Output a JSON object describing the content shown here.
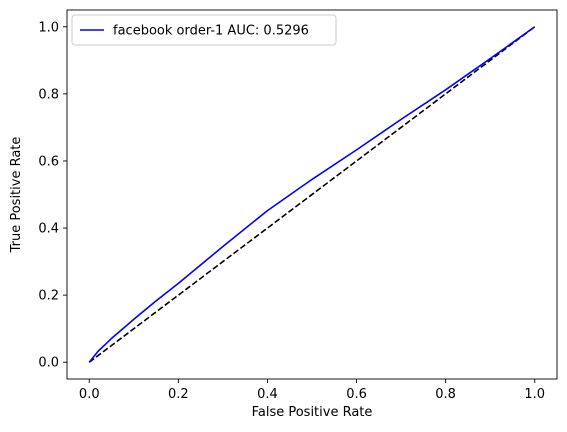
{
  "chart_data": {
    "type": "line",
    "xlabel": "False Positive Rate",
    "ylabel": "True Positive Rate",
    "xlim": [
      -0.05,
      1.05
    ],
    "ylim": [
      -0.05,
      1.05
    ],
    "xticks": [
      0.0,
      0.2,
      0.4,
      0.6,
      0.8,
      1.0
    ],
    "yticks": [
      0.0,
      0.2,
      0.4,
      0.6,
      0.8,
      1.0
    ],
    "xtick_labels": [
      "0.0",
      "0.2",
      "0.4",
      "0.6",
      "0.8",
      "1.0"
    ],
    "ytick_labels": [
      "0.0",
      "0.2",
      "0.4",
      "0.6",
      "0.8",
      "1.0"
    ],
    "grid": false,
    "legend_position": "top-left",
    "series": [
      {
        "name": "facebook order-1 AUC: 0.5296",
        "color": "#0000ff",
        "style": "solid",
        "x": [
          0.0,
          0.02,
          0.05,
          0.1,
          0.15,
          0.2,
          0.3,
          0.4,
          0.5,
          0.6,
          0.7,
          0.8,
          0.9,
          1.0
        ],
        "y": [
          0.0,
          0.033,
          0.071,
          0.128,
          0.183,
          0.235,
          0.345,
          0.452,
          0.545,
          0.633,
          0.724,
          0.812,
          0.905,
          1.0
        ]
      },
      {
        "name": "",
        "color": "#000000",
        "style": "dashed",
        "x": [
          0.0,
          1.0
        ],
        "y": [
          0.0,
          1.0
        ]
      }
    ]
  }
}
